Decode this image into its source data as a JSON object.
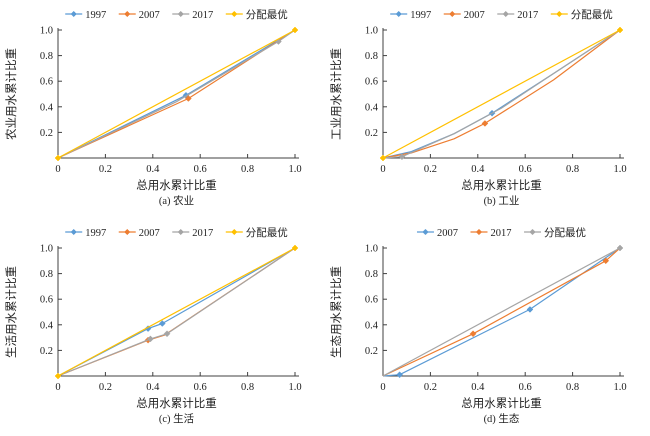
{
  "palette": {
    "blue": "#5B9BD5",
    "orange": "#ED7D31",
    "gray": "#A5A5A5",
    "gold": "#FFC000",
    "axis": "#404040",
    "text": "#1f1f1f"
  },
  "chart_data": [
    {
      "type": "line",
      "subtitle": "(a) 农业",
      "xlabel": "总用水累计比重",
      "ylabel": "农业用水累计比重",
      "xlim": [
        0,
        1
      ],
      "ylim": [
        0,
        1
      ],
      "xticks": [
        0,
        0.2,
        0.4,
        0.6,
        0.8,
        1.0
      ],
      "yticks": [
        0.2,
        0.4,
        0.6,
        0.8,
        1.0
      ],
      "grid": false,
      "legend_position": "top",
      "series": [
        {
          "name": "1997",
          "color": "blue",
          "points": [
            [
              0,
              0
            ],
            [
              0.54,
              0.49
            ],
            [
              1,
              1
            ]
          ],
          "markers": [
            [
              0.54,
              0.49
            ]
          ]
        },
        {
          "name": "2007",
          "color": "orange",
          "points": [
            [
              0,
              0
            ],
            [
              0.55,
              0.465
            ],
            [
              1,
              1
            ]
          ],
          "markers": [
            [
              0.55,
              0.465
            ]
          ]
        },
        {
          "name": "2017",
          "color": "gray",
          "points": [
            [
              0,
              0
            ],
            [
              0.5,
              0.44
            ],
            [
              0.93,
              0.91
            ],
            [
              1,
              1
            ]
          ],
          "markers": [
            [
              0.93,
              0.91
            ]
          ]
        },
        {
          "name": "分配最优",
          "color": "gold",
          "points": [
            [
              0,
              0
            ],
            [
              1,
              1
            ]
          ],
          "markers": [
            [
              0,
              0
            ],
            [
              1,
              1
            ]
          ]
        }
      ]
    },
    {
      "type": "line",
      "subtitle": "(b) 工业",
      "xlabel": "总用水累计比重",
      "ylabel": "工业用水累计比重",
      "xlim": [
        0,
        1
      ],
      "ylim": [
        0,
        1
      ],
      "xticks": [
        0,
        0.2,
        0.4,
        0.6,
        0.8,
        1.0
      ],
      "yticks": [
        0.2,
        0.4,
        0.6,
        0.8,
        1.0
      ],
      "grid": false,
      "legend_position": "top",
      "series": [
        {
          "name": "1997",
          "color": "blue",
          "points": [
            [
              0,
              0
            ],
            [
              0.12,
              0.05
            ],
            [
              0.3,
              0.19
            ],
            [
              0.46,
              0.35
            ],
            [
              0.72,
              0.66
            ],
            [
              1,
              1
            ]
          ],
          "markers": [
            [
              0.46,
              0.35
            ]
          ]
        },
        {
          "name": "2007",
          "color": "orange",
          "points": [
            [
              0,
              0
            ],
            [
              0.12,
              0.04
            ],
            [
              0.3,
              0.15
            ],
            [
              0.43,
              0.27
            ],
            [
              0.72,
              0.61
            ],
            [
              1,
              1
            ]
          ],
          "markers": [
            [
              0.43,
              0.27
            ]
          ]
        },
        {
          "name": "2017",
          "color": "gray",
          "points": [
            [
              0,
              0
            ],
            [
              0.08,
              0.01
            ],
            [
              0.3,
              0.19
            ],
            [
              0.5,
              0.39
            ],
            [
              0.72,
              0.66
            ],
            [
              1,
              1
            ]
          ],
          "markers": [
            [
              0.08,
              0.01
            ]
          ]
        },
        {
          "name": "分配最优",
          "color": "gold",
          "points": [
            [
              0,
              0
            ],
            [
              1,
              1
            ]
          ],
          "markers": [
            [
              0,
              0
            ],
            [
              1,
              1
            ]
          ]
        }
      ]
    },
    {
      "type": "line",
      "subtitle": "(c) 生活",
      "xlabel": "总用水累计比重",
      "ylabel": "生活用水累计比重",
      "xlim": [
        0,
        1
      ],
      "ylim": [
        0,
        1
      ],
      "xticks": [
        0,
        0.2,
        0.4,
        0.6,
        0.8,
        1.0
      ],
      "yticks": [
        0.2,
        0.4,
        0.6,
        0.8,
        1.0
      ],
      "grid": false,
      "legend_position": "top",
      "series": [
        {
          "name": "1997",
          "color": "blue",
          "points": [
            [
              0,
              0
            ],
            [
              0.38,
              0.37
            ],
            [
              0.44,
              0.41
            ],
            [
              1,
              1
            ]
          ],
          "markers": [
            [
              0.38,
              0.37
            ],
            [
              0.44,
              0.41
            ]
          ]
        },
        {
          "name": "2007",
          "color": "orange",
          "points": [
            [
              0,
              0
            ],
            [
              0.38,
              0.28
            ],
            [
              0.45,
              0.32
            ],
            [
              1,
              1
            ]
          ],
          "markers": [
            [
              0.38,
              0.28
            ]
          ]
        },
        {
          "name": "2017",
          "color": "gray",
          "points": [
            [
              0,
              0
            ],
            [
              0.39,
              0.29
            ],
            [
              0.46,
              0.33
            ],
            [
              1,
              1
            ]
          ],
          "markers": [
            [
              0.39,
              0.29
            ],
            [
              0.46,
              0.33
            ]
          ]
        },
        {
          "name": "分配最优",
          "color": "gold",
          "points": [
            [
              0,
              0
            ],
            [
              1,
              1
            ]
          ],
          "markers": [
            [
              0,
              0
            ],
            [
              1,
              1
            ]
          ]
        }
      ]
    },
    {
      "type": "line",
      "subtitle": "(d) 生态",
      "xlabel": "总用水累计比重",
      "ylabel": "生态用水累计比重",
      "xlim": [
        0,
        1
      ],
      "ylim": [
        0,
        1
      ],
      "xticks": [
        0,
        0.2,
        0.4,
        0.6,
        0.8,
        1.0
      ],
      "yticks": [
        0.2,
        0.4,
        0.6,
        0.8,
        1.0
      ],
      "grid": false,
      "legend_position": "top",
      "series": [
        {
          "name": "2007",
          "color": "blue",
          "points": [
            [
              0,
              0
            ],
            [
              0.07,
              0.01
            ],
            [
              0.62,
              0.52
            ],
            [
              1,
              1
            ]
          ],
          "markers": [
            [
              0.07,
              0.01
            ],
            [
              0.62,
              0.52
            ]
          ]
        },
        {
          "name": "2017",
          "color": "orange",
          "points": [
            [
              0,
              0
            ],
            [
              0.38,
              0.33
            ],
            [
              0.94,
              0.9
            ],
            [
              1,
              1
            ]
          ],
          "markers": [
            [
              0.38,
              0.33
            ],
            [
              0.94,
              0.9
            ]
          ]
        },
        {
          "name": "分配最优",
          "color": "gray",
          "points": [
            [
              0,
              0
            ],
            [
              1,
              1
            ]
          ],
          "markers": [
            [
              1,
              1
            ]
          ]
        }
      ]
    }
  ]
}
